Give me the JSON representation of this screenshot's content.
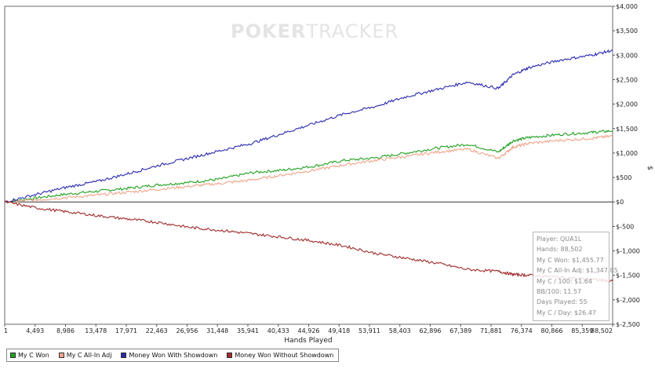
{
  "watermark": {
    "bold": "POKER",
    "thin": "TRACKER"
  },
  "chart_data": {
    "type": "line",
    "title": "",
    "xlabel": "Hands Played",
    "ylabel": "$",
    "xlim": [
      1,
      88502
    ],
    "ylim": [
      -2500,
      4000
    ],
    "x_ticks": [
      "1",
      "4,493",
      "8,986",
      "13,478",
      "17,971",
      "22,463",
      "26,956",
      "31,448",
      "35,941",
      "40,433",
      "44,926",
      "49,418",
      "53,911",
      "58,403",
      "62,896",
      "67,389",
      "71,881",
      "76,374",
      "80,866",
      "85,359",
      "88,502"
    ],
    "y_ticks": [
      "$4,000",
      "$3,500",
      "$3,000",
      "$2,500",
      "$2,000",
      "$1,500",
      "$1,000",
      "$500",
      "$0",
      "$-500",
      "$-1,000",
      "$-1,500",
      "$-2,000",
      "$-2,500"
    ],
    "legend": "bottom-left",
    "x": [
      1,
      4493,
      8986,
      13478,
      17971,
      22463,
      26956,
      31448,
      35941,
      40433,
      44926,
      49418,
      53911,
      58403,
      62896,
      67389,
      71881,
      74000,
      76374,
      80866,
      85359,
      88502
    ],
    "series": [
      {
        "name": "My C Won",
        "color": "#22a022",
        "values": [
          0,
          80,
          160,
          220,
          280,
          350,
          400,
          470,
          600,
          650,
          730,
          850,
          900,
          1000,
          1100,
          1180,
          1020,
          1250,
          1320,
          1380,
          1420,
          1455.77
        ]
      },
      {
        "name": "My C All-In Adj",
        "color": "#f0a488",
        "values": [
          0,
          40,
          90,
          140,
          200,
          260,
          320,
          380,
          450,
          550,
          650,
          760,
          850,
          930,
          1020,
          1080,
          890,
          1120,
          1200,
          1260,
          1300,
          1347.85
        ]
      },
      {
        "name": "Money Won With Showdown",
        "color": "#2828b0",
        "values": [
          0,
          150,
          300,
          420,
          580,
          750,
          900,
          1050,
          1200,
          1400,
          1600,
          1800,
          1950,
          2150,
          2300,
          2450,
          2320,
          2600,
          2750,
          2900,
          3000,
          3100
        ]
      },
      {
        "name": "Money Won Without Showdown",
        "color": "#a02a2a",
        "values": [
          0,
          -120,
          -200,
          -280,
          -350,
          -420,
          -520,
          -580,
          -650,
          -720,
          -800,
          -900,
          -1050,
          -1150,
          -1250,
          -1380,
          -1420,
          -1480,
          -1500,
          -1540,
          -1580,
          -1620
        ]
      }
    ]
  },
  "info": {
    "player": "Player: QUA1L",
    "hands": "Hands: 88,502",
    "won": "My C Won: $1,455.77",
    "allin": "My C All-In Adj: $1,347.85",
    "per100": "My C / 100: $1.64",
    "bb100": "BB/100: 11.57",
    "days": "Days Played: 55",
    "perday": "My C / Day: $26.47"
  }
}
